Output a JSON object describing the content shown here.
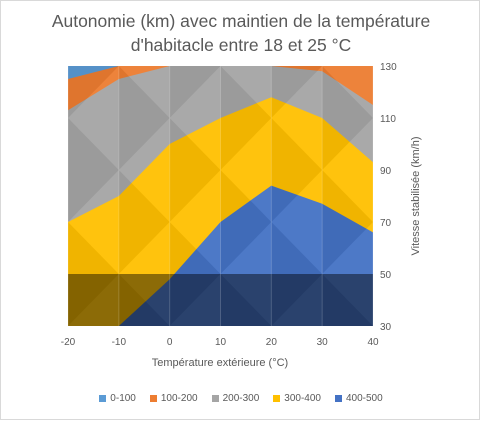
{
  "chart_data": {
    "type": "heatmap",
    "title_line1": "Autonomie (km) avec maintien de la température",
    "title_line2": "d'habitacle entre 18 et 25 °C",
    "xlabel": "Température extérieure (°C)",
    "ylabel": "Vitesse stabilisée (km/h)",
    "x_ticks": [
      "-20",
      "-10",
      "0",
      "10",
      "20",
      "30",
      "40"
    ],
    "y_ticks": [
      "30",
      "50",
      "70",
      "90",
      "110",
      "130"
    ],
    "x_range": [
      -20,
      40
    ],
    "y_range": [
      30,
      130
    ],
    "legend_placement": "bottom",
    "bands": [
      {
        "label": "0-100",
        "color": "#5b9bd5"
      },
      {
        "label": "100-200",
        "color": "#ed7d31"
      },
      {
        "label": "200-300",
        "color": "#a5a5a5"
      },
      {
        "label": "300-400",
        "color": "#ffc000"
      },
      {
        "label": "400-500",
        "color": "#4472c4"
      }
    ],
    "iso_lines_y_at_x": {
      "x": [
        -20,
        -10,
        0,
        10,
        20,
        30,
        40
      ],
      "100": [
        125,
        130,
        130,
        130,
        130,
        130,
        130
      ],
      "200": [
        113,
        125,
        130,
        130,
        130,
        128,
        115
      ],
      "300": [
        70,
        80,
        100,
        110,
        118,
        110,
        93
      ],
      "400": [
        30,
        30,
        48,
        70,
        84,
        77,
        66
      ]
    },
    "shadow_band_y": [
      30,
      50
    ]
  }
}
